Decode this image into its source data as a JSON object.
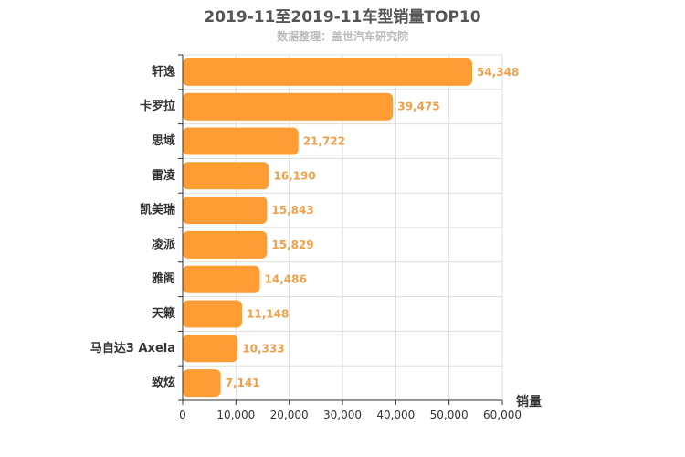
{
  "chart_data": {
    "type": "bar",
    "orientation": "horizontal",
    "title": "2019-11至2019-11车型销量TOP10",
    "subtitle": "数据整理：盖世汽车研究院",
    "categories": [
      "轩逸",
      "卡罗拉",
      "思域",
      "雷凌",
      "凯美瑞",
      "凌派",
      "雅阁",
      "天籁",
      "马自达3 Axela",
      "致炫"
    ],
    "series": [
      {
        "values": [
          54348,
          39475,
          21722,
          16190,
          15843,
          15829,
          14486,
          11148,
          10333,
          7141
        ],
        "labels": [
          "54,348",
          "39,475",
          "21,722",
          "16,190",
          "15,843",
          "15,829",
          "14,486",
          "11,148",
          "10,333",
          "7,141"
        ]
      }
    ],
    "xlabel": "销量",
    "ylabel": "",
    "xlim": [
      0,
      60000
    ],
    "ticks": [
      0,
      10000,
      20000,
      30000,
      40000,
      50000,
      60000
    ],
    "tick_labels": [
      "0",
      "10,000",
      "20,000",
      "30,000",
      "40,000",
      "50,000",
      "60,000"
    ],
    "grid": true,
    "bar_color": "#ff9c33",
    "label_color": "#f0a04a"
  }
}
